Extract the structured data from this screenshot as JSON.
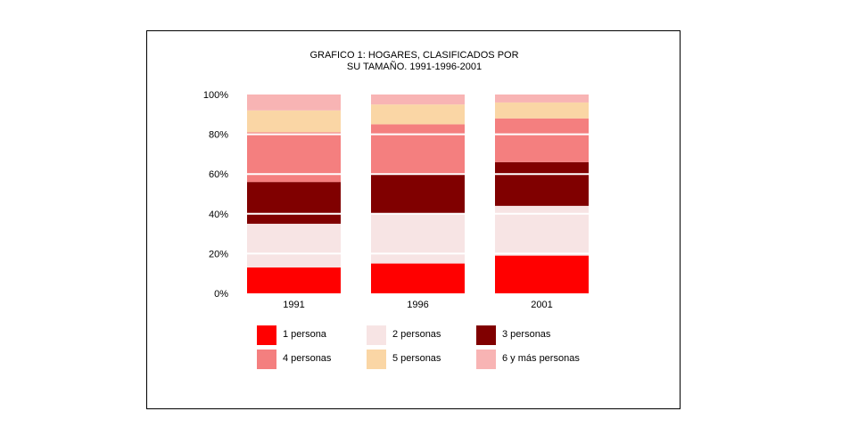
{
  "chart_data": {
    "type": "bar",
    "stacked": true,
    "title": [
      "GRAFICO 1: HOGARES, CLASIFICADOS POR",
      "SU TAMAÑO. 1991-1996-2001"
    ],
    "categories": [
      "1991",
      "1996",
      "2001"
    ],
    "ylim": [
      0,
      100
    ],
    "yticks": [
      "0%",
      "20%",
      "40%",
      "60%",
      "80%",
      "100%"
    ],
    "grid": true,
    "legend_position": "bottom",
    "series": [
      {
        "name": "1 persona",
        "color": "#ff0000",
        "values": [
          13,
          15,
          19
        ]
      },
      {
        "name": "2 personas",
        "color": "#f7e4e4",
        "values": [
          22,
          25,
          25
        ]
      },
      {
        "name": "3 personas",
        "color": "#800000",
        "values": [
          21,
          20,
          22
        ]
      },
      {
        "name": "4 personas",
        "color": "#f47f7f",
        "values": [
          25,
          25,
          22
        ]
      },
      {
        "name": "5 personas",
        "color": "#fad6a5",
        "values": [
          11,
          10,
          8
        ]
      },
      {
        "name": "6 y más personas",
        "color": "#f8b4b4",
        "values": [
          8,
          5,
          4
        ]
      }
    ]
  }
}
